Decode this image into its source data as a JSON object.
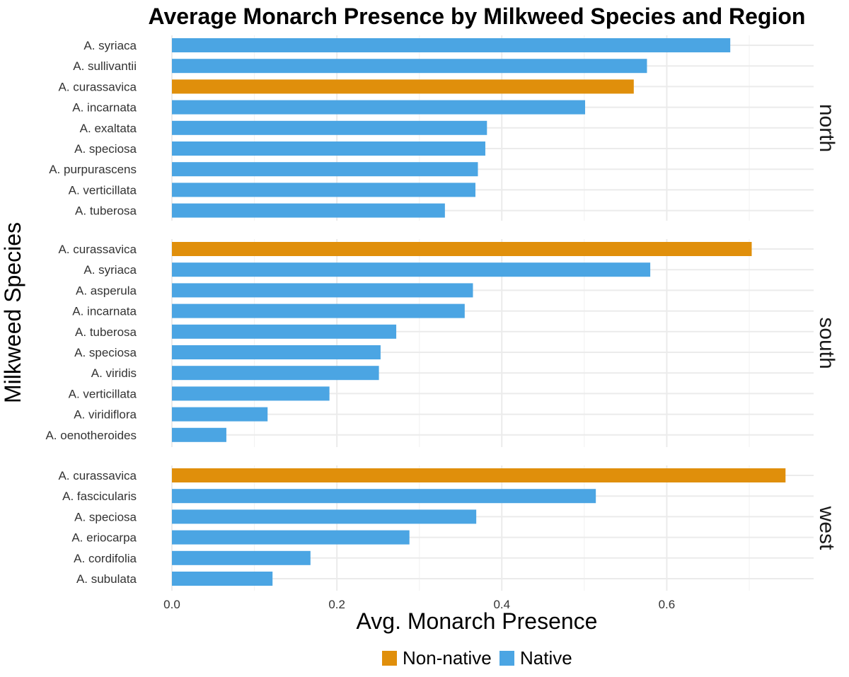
{
  "colors": {
    "Non-native": "#E08F0B",
    "Native": "#4BA5E3"
  },
  "chart_data": {
    "type": "bar",
    "orientation": "horizontal",
    "title": "Average Monarch Presence by Milkweed Species and Region",
    "xlabel": "Avg. Monarch Presence",
    "ylabel": "Milkweed Species",
    "xlim": [
      0,
      0.77
    ],
    "xticks": [
      "0.0",
      "0.2",
      "0.4",
      "0.6"
    ],
    "xtick_values": [
      0,
      0.2,
      0.4,
      0.6
    ],
    "grid": true,
    "legend": {
      "position": "bottom",
      "entries": [
        "Non-native",
        "Native"
      ]
    },
    "facets": [
      {
        "name": "north",
        "categories": [
          "A. syriaca",
          "A. sullivantii",
          "A. curassavica",
          "A. incarnata",
          "A. exaltata",
          "A. speciosa",
          "A. purpurascens",
          "A. verticillata",
          "A. tuberosa"
        ],
        "values": [
          0.677,
          0.576,
          0.56,
          0.501,
          0.382,
          0.38,
          0.371,
          0.368,
          0.331
        ],
        "status": [
          "Native",
          "Native",
          "Non-native",
          "Native",
          "Native",
          "Native",
          "Native",
          "Native",
          "Native"
        ]
      },
      {
        "name": "south",
        "categories": [
          "A. curassavica",
          "A. syriaca",
          "A. asperula",
          "A. incarnata",
          "A. tuberosa",
          "A. speciosa",
          "A. viridis",
          "A. verticillata",
          "A. viridiflora",
          "A. oenotheroides"
        ],
        "values": [
          0.703,
          0.58,
          0.365,
          0.355,
          0.272,
          0.253,
          0.251,
          0.191,
          0.116,
          0.066
        ],
        "status": [
          "Non-native",
          "Native",
          "Native",
          "Native",
          "Native",
          "Native",
          "Native",
          "Native",
          "Native",
          "Native"
        ]
      },
      {
        "name": "west",
        "categories": [
          "A. curassavica",
          "A. fascicularis",
          "A. speciosa",
          "A. eriocarpa",
          "A. cordifolia",
          "A. subulata"
        ],
        "values": [
          0.744,
          0.514,
          0.369,
          0.288,
          0.168,
          0.122
        ],
        "status": [
          "Non-native",
          "Native",
          "Native",
          "Native",
          "Native",
          "Native"
        ]
      }
    ]
  }
}
